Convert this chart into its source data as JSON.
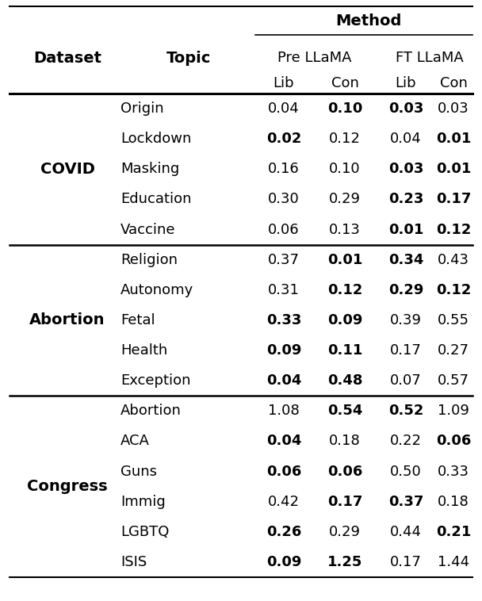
{
  "title": "Method",
  "covid_topics": [
    "Origin",
    "Lockdown",
    "Masking",
    "Education",
    "Vaccine"
  ],
  "abortion_topics": [
    "Religion",
    "Autonomy",
    "Fetal",
    "Health",
    "Exception"
  ],
  "congress_topics": [
    "Abortion",
    "ACA",
    "Guns",
    "Immig",
    "LGBTQ",
    "ISIS"
  ],
  "data": {
    "COVID": {
      "Origin": {
        "vals": [
          "0.04",
          "0.10",
          "0.03",
          "0.03"
        ],
        "bolds": [
          false,
          true,
          true,
          false
        ]
      },
      "Lockdown": {
        "vals": [
          "0.02",
          "0.12",
          "0.04",
          "0.01"
        ],
        "bolds": [
          true,
          false,
          false,
          true
        ]
      },
      "Masking": {
        "vals": [
          "0.16",
          "0.10",
          "0.03",
          "0.01"
        ],
        "bolds": [
          false,
          false,
          true,
          true
        ]
      },
      "Education": {
        "vals": [
          "0.30",
          "0.29",
          "0.23",
          "0.17"
        ],
        "bolds": [
          false,
          false,
          true,
          true
        ]
      },
      "Vaccine": {
        "vals": [
          "0.06",
          "0.13",
          "0.01",
          "0.12"
        ],
        "bolds": [
          false,
          false,
          true,
          true
        ]
      }
    },
    "Abortion": {
      "Religion": {
        "vals": [
          "0.37",
          "0.01",
          "0.34",
          "0.43"
        ],
        "bolds": [
          false,
          true,
          true,
          false
        ]
      },
      "Autonomy": {
        "vals": [
          "0.31",
          "0.12",
          "0.29",
          "0.12"
        ],
        "bolds": [
          false,
          true,
          true,
          true
        ]
      },
      "Fetal": {
        "vals": [
          "0.33",
          "0.09",
          "0.39",
          "0.55"
        ],
        "bolds": [
          true,
          true,
          false,
          false
        ]
      },
      "Health": {
        "vals": [
          "0.09",
          "0.11",
          "0.17",
          "0.27"
        ],
        "bolds": [
          true,
          true,
          false,
          false
        ]
      },
      "Exception": {
        "vals": [
          "0.04",
          "0.48",
          "0.07",
          "0.57"
        ],
        "bolds": [
          true,
          true,
          false,
          false
        ]
      }
    },
    "Congress": {
      "Abortion": {
        "vals": [
          "1.08",
          "0.54",
          "0.52",
          "1.09"
        ],
        "bolds": [
          false,
          true,
          true,
          false
        ]
      },
      "ACA": {
        "vals": [
          "0.04",
          "0.18",
          "0.22",
          "0.06"
        ],
        "bolds": [
          true,
          false,
          false,
          true
        ]
      },
      "Guns": {
        "vals": [
          "0.06",
          "0.06",
          "0.50",
          "0.33"
        ],
        "bolds": [
          true,
          true,
          false,
          false
        ]
      },
      "Immig": {
        "vals": [
          "0.42",
          "0.17",
          "0.37",
          "0.18"
        ],
        "bolds": [
          false,
          true,
          true,
          false
        ]
      },
      "LGBTQ": {
        "vals": [
          "0.26",
          "0.29",
          "0.44",
          "0.21"
        ],
        "bolds": [
          true,
          false,
          false,
          true
        ]
      },
      "ISIS": {
        "vals": [
          "0.09",
          "1.25",
          "0.17",
          "1.44"
        ],
        "bolds": [
          true,
          true,
          false,
          false
        ]
      }
    }
  },
  "figsize": [
    6.08,
    7.58
  ],
  "dpi": 100,
  "bg_color": "#ffffff"
}
